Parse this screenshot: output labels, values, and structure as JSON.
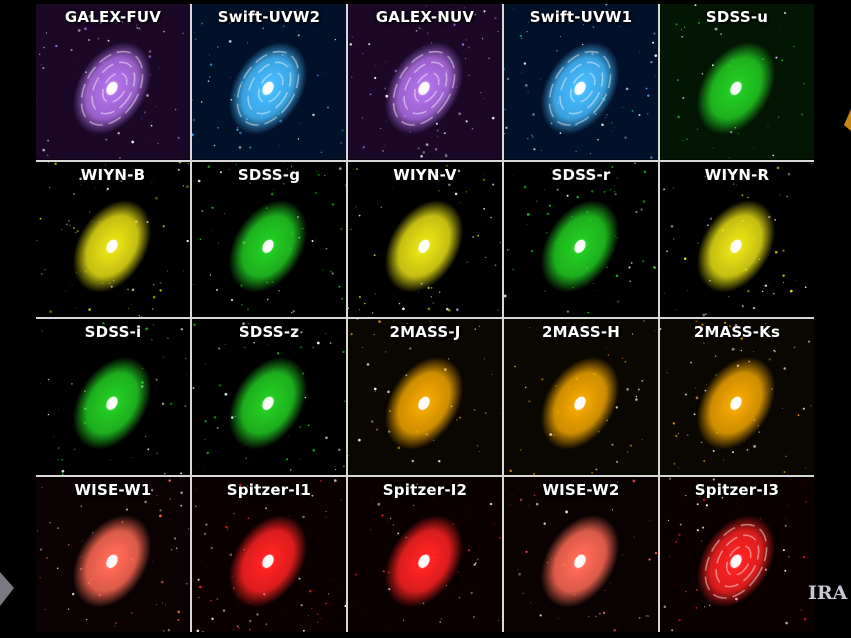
{
  "panels": [
    {
      "label": "GALEX-FUV",
      "color": "#b070e8",
      "style": "spiral",
      "bg": "#1a0826"
    },
    {
      "label": "Swift-UVW2",
      "color": "#44bbff",
      "style": "spiral",
      "bg": "#02112a"
    },
    {
      "label": "GALEX-NUV",
      "color": "#b070e8",
      "style": "spiral",
      "bg": "#1a0826"
    },
    {
      "label": "Swift-UVW1",
      "color": "#44bbff",
      "style": "spiral",
      "bg": "#02112a"
    },
    {
      "label": "SDSS-u",
      "color": "#22cc22",
      "style": "smooth",
      "bg": "#031503"
    },
    {
      "label": "WIYN-B",
      "color": "#e6e014",
      "style": "smooth",
      "bg": "#000000"
    },
    {
      "label": "SDSS-g",
      "color": "#22cc22",
      "style": "smooth",
      "bg": "#000000"
    },
    {
      "label": "WIYN-V",
      "color": "#e6e014",
      "style": "smooth",
      "bg": "#000000"
    },
    {
      "label": "SDSS-r",
      "color": "#22cc22",
      "style": "smooth",
      "bg": "#000000"
    },
    {
      "label": "WIYN-R",
      "color": "#e6e014",
      "style": "smooth",
      "bg": "#000000"
    },
    {
      "label": "SDSS-i",
      "color": "#22cc22",
      "style": "smooth",
      "bg": "#000000"
    },
    {
      "label": "SDSS-z",
      "color": "#22cc22",
      "style": "smooth",
      "bg": "#000000"
    },
    {
      "label": "2MASS-J",
      "color": "#f0a500",
      "style": "smooth",
      "bg": "#0a0600"
    },
    {
      "label": "2MASS-H",
      "color": "#f0a500",
      "style": "smooth",
      "bg": "#0a0600"
    },
    {
      "label": "2MASS-Ks",
      "color": "#f0a500",
      "style": "smooth",
      "bg": "#0a0600"
    },
    {
      "label": "WISE-W1",
      "color": "#ff6a55",
      "style": "smooth",
      "bg": "#0a0202"
    },
    {
      "label": "Spitzer-I1",
      "color": "#ff2222",
      "style": "smooth",
      "bg": "#0a0000"
    },
    {
      "label": "Spitzer-I2",
      "color": "#ff2222",
      "style": "smooth",
      "bg": "#0a0000"
    },
    {
      "label": "WISE-W2",
      "color": "#ff6a55",
      "style": "smooth",
      "bg": "#0a0202"
    },
    {
      "label": "Spitzer-I3",
      "color": "#ff2222",
      "style": "spiral",
      "bg": "#0a0000"
    }
  ],
  "corner_text": "IRA",
  "icons": {
    "left": "arrow-shape-icon",
    "right": "arrow-shape-icon"
  }
}
